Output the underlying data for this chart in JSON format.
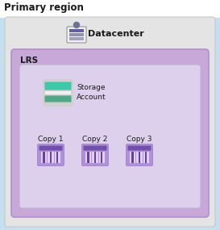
{
  "title": "Primary region",
  "title_fontsize": 8.5,
  "title_fontweight": "bold",
  "bg_outer": "#c5dff0",
  "bg_title_area": "#ddeef8",
  "datacenter_box_color": "#e4e4e4",
  "datacenter_box_edge": "#c8c8c8",
  "lrs_box_color": "#c8a8d8",
  "lrs_box_edge": "#b090c8",
  "inner_box_color": "#ddd0ec",
  "inner_box_edge": "#c0b0d8",
  "datacenter_label": "Datacenter",
  "lrs_label": "LRS",
  "storage_label_1": "Storage",
  "storage_label_2": "Account",
  "copies": [
    "Copy 1",
    "Copy 2",
    "Copy 3"
  ],
  "copy_label_fontsize": 6.5,
  "storage_fontsize": 6.5,
  "datacenter_fontsize": 8,
  "lrs_fontsize": 7.5,
  "storage_stripe_colors": [
    "#3dc8a8",
    "#e8e8e8",
    "#50a898"
  ],
  "storage_bg": "#d8d8d8",
  "copy_icon_bg": "#b090d8",
  "copy_icon_top": "#7050a8",
  "copy_icon_stripe_bg": "#c8b0e0",
  "copy_icon_stripe_dark": "#6840a0",
  "copy_icon_stripe_light": "#e0d0f4"
}
